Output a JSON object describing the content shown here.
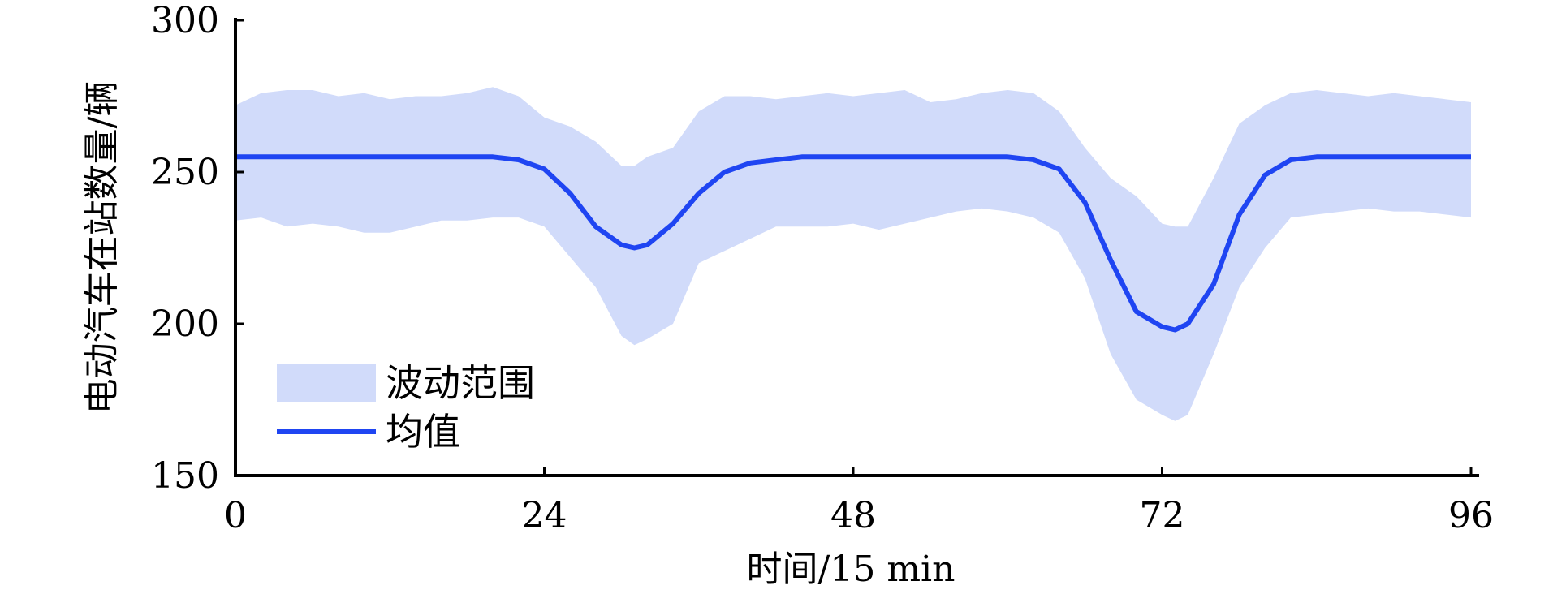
{
  "chart_data": {
    "type": "area",
    "title": "",
    "xlabel": "时间/15 min",
    "ylabel": "电动汽车在站数量/辆",
    "xlim": [
      0,
      96
    ],
    "ylim": [
      150,
      300
    ],
    "xticks": [
      0,
      24,
      48,
      72,
      96
    ],
    "yticks": [
      150,
      200,
      250,
      300
    ],
    "grid": false,
    "legend": "bottom-left",
    "colors": {
      "band": "#d1dbfa",
      "mean": "#1f45f2",
      "axis": "#000000"
    },
    "x": [
      0,
      2,
      4,
      6,
      8,
      10,
      12,
      14,
      16,
      18,
      20,
      22,
      24,
      26,
      28,
      30,
      31,
      32,
      34,
      36,
      38,
      40,
      42,
      44,
      46,
      48,
      50,
      52,
      54,
      56,
      58,
      60,
      62,
      64,
      66,
      68,
      70,
      72,
      73,
      74,
      76,
      78,
      80,
      82,
      84,
      86,
      88,
      90,
      92,
      94,
      96
    ],
    "series": [
      {
        "name": "均值",
        "values": [
          255,
          255,
          255,
          255,
          255,
          255,
          255,
          255,
          255,
          255,
          255,
          254,
          251,
          243,
          232,
          226,
          225,
          226,
          233,
          243,
          250,
          253,
          254,
          255,
          255,
          255,
          255,
          255,
          255,
          255,
          255,
          255,
          254,
          251,
          240,
          221,
          204,
          199,
          198,
          200,
          213,
          236,
          249,
          254,
          255,
          255,
          255,
          255,
          255,
          255,
          255
        ]
      },
      {
        "name": "波动范围",
        "upper": [
          272,
          276,
          277,
          277,
          275,
          276,
          274,
          275,
          275,
          276,
          278,
          275,
          268,
          265,
          260,
          252,
          252,
          255,
          258,
          270,
          275,
          275,
          274,
          275,
          276,
          275,
          276,
          277,
          273,
          274,
          276,
          277,
          276,
          270,
          258,
          248,
          242,
          233,
          232,
          232,
          248,
          266,
          272,
          276,
          277,
          276,
          275,
          276,
          275,
          274,
          273
        ],
        "lower": [
          234,
          235,
          232,
          233,
          232,
          230,
          230,
          232,
          234,
          234,
          235,
          235,
          232,
          222,
          212,
          196,
          193,
          195,
          200,
          220,
          224,
          228,
          232,
          232,
          232,
          233,
          231,
          233,
          235,
          237,
          238,
          237,
          235,
          230,
          215,
          190,
          175,
          170,
          168,
          170,
          190,
          212,
          225,
          235,
          236,
          237,
          238,
          237,
          237,
          236,
          235
        ]
      }
    ]
  }
}
